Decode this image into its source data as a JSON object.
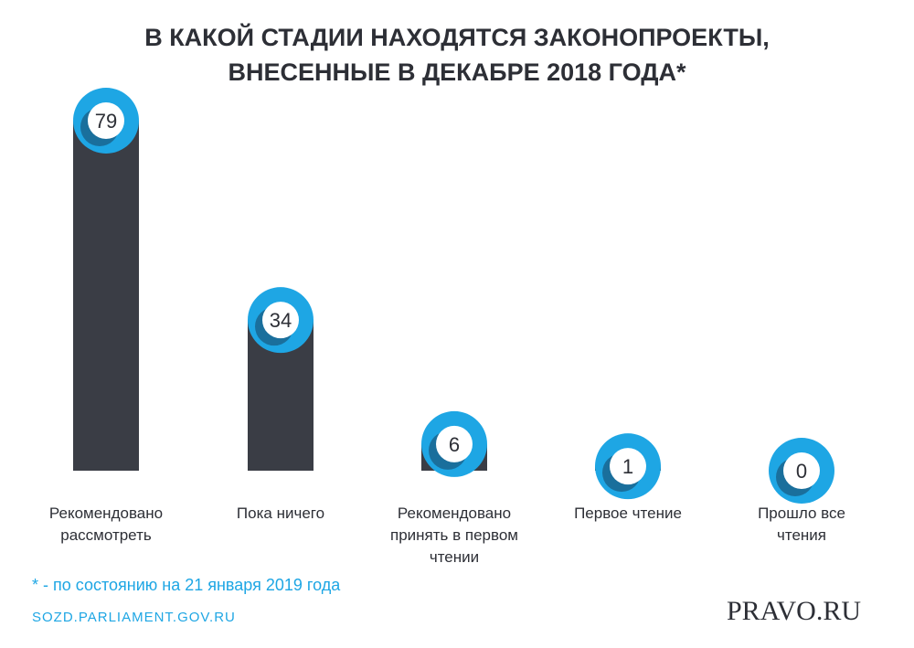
{
  "chart_data": {
    "type": "bar",
    "title": "В КАКОЙ СТАДИИ НАХОДЯТСЯ ЗАКОНОПРОЕКТЫ, ВНЕСЕННЫЕ В ДЕКАБРЕ 2018 ГОДА*",
    "categories": [
      "Рекомендовано рассмотреть",
      "Пока ничего",
      "Рекомендовано принять в первом чтении",
      "Первое чтение",
      "Прошло все чтения"
    ],
    "values": [
      79,
      34,
      6,
      1,
      0
    ],
    "color": "#3a3d45",
    "badge_color": "#1ea6e4",
    "footnote": "* - по состоянию на 21 января 2019 года",
    "source": "SOZD.PARLIAMENT.GOV.RU",
    "logo": "PRAVO.RU"
  }
}
